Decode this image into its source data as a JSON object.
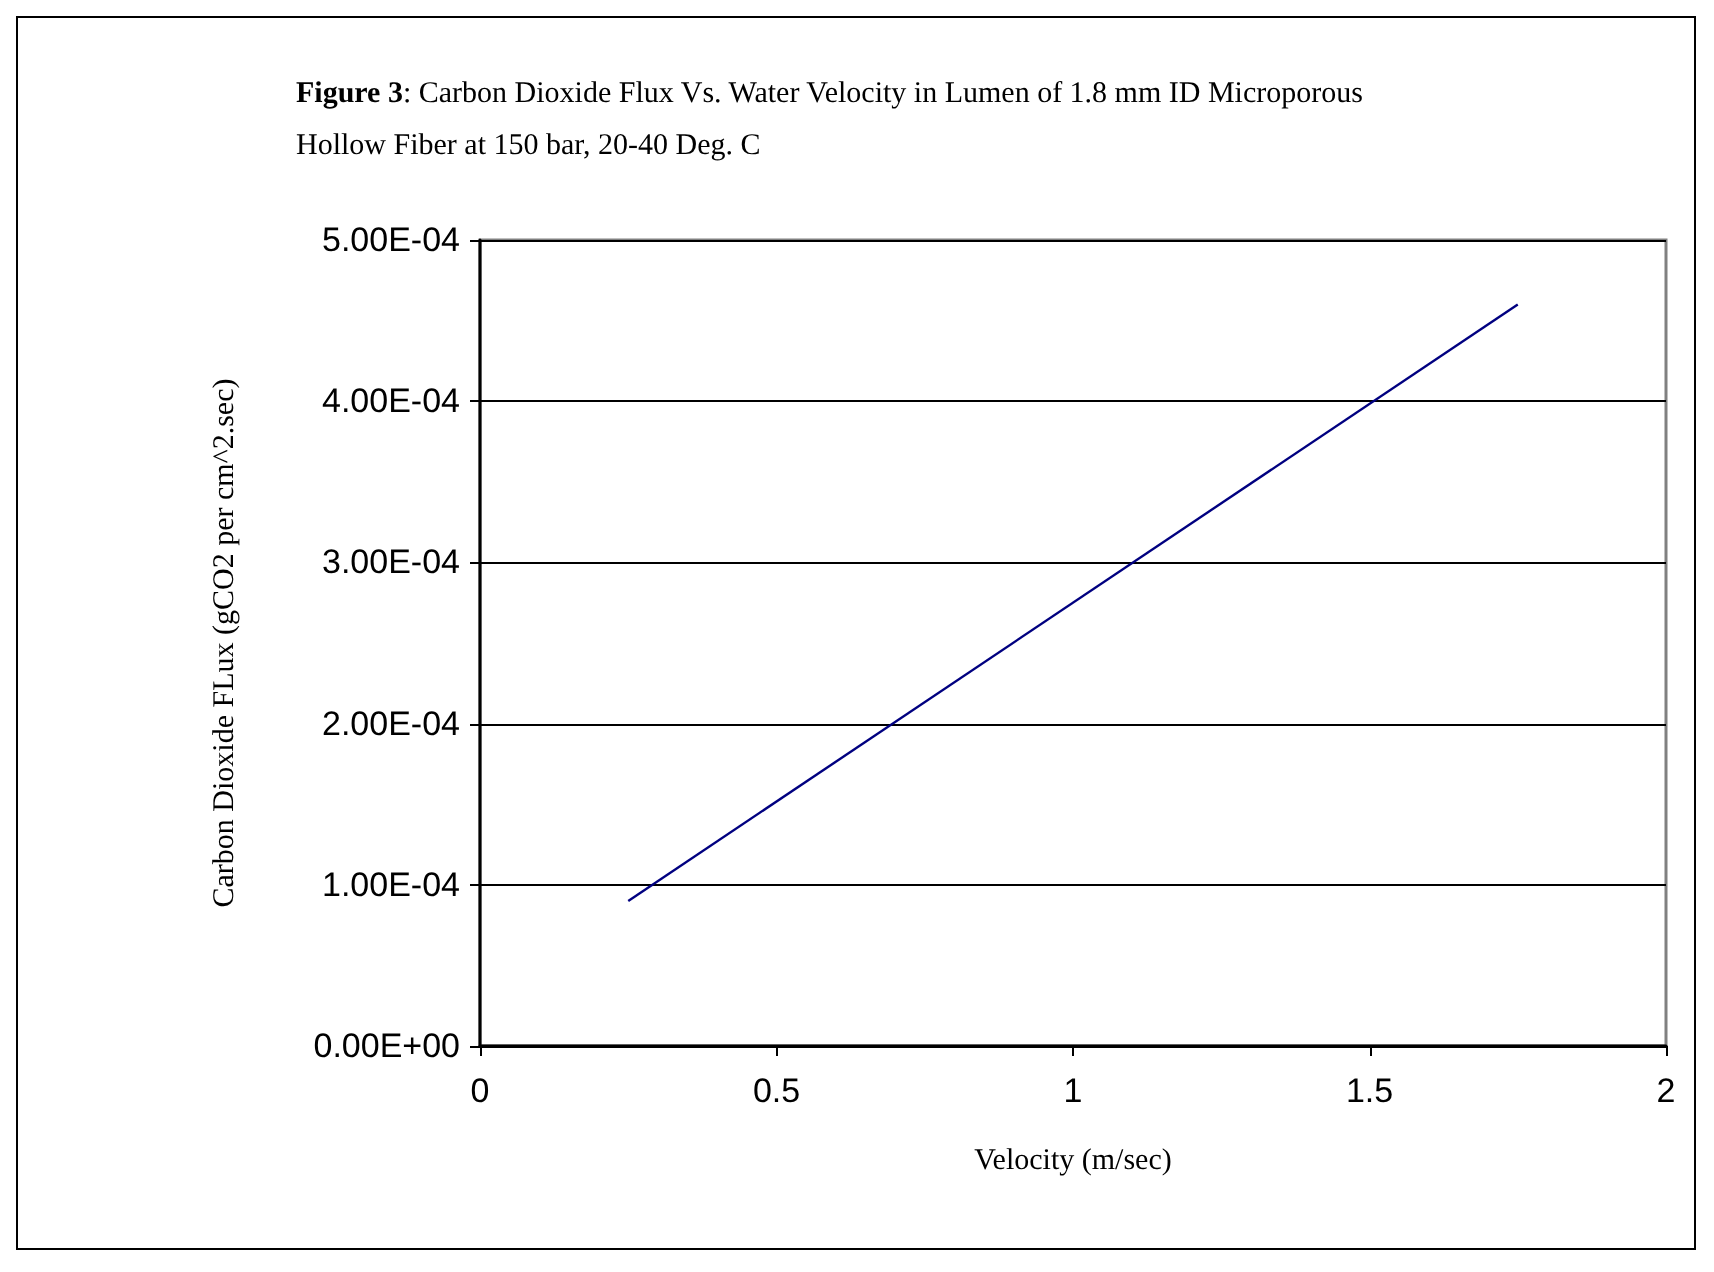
{
  "chart_data": {
    "type": "line",
    "title": "Figure 3: Carbon Dioxide Flux Vs. Water Velocity in Lumen of 1.8 mm ID Microporous Hollow Fiber at 150 bar, 20-40 Deg. C",
    "xlabel": "Velocity (m/sec)",
    "ylabel": "Carbon Dioxide FLux (gCO2 per cm^2.sec)",
    "x": [
      0.25,
      1.75
    ],
    "series": [
      {
        "color": "#000080",
        "values": [
          9e-05,
          0.00046
        ]
      }
    ],
    "xlim": [
      0,
      2
    ],
    "xticks": [
      0,
      0.5,
      1,
      1.5,
      2
    ],
    "ylim": [
      0,
      0.0005
    ],
    "yticks": [
      {
        "value": 0,
        "label": "0.00E+00"
      },
      {
        "value": 0.0001,
        "label": "1.00E-04"
      },
      {
        "value": 0.0002,
        "label": "2.00E-04"
      },
      {
        "value": 0.0003,
        "label": "3.00E-04"
      },
      {
        "value": 0.0004,
        "label": "4.00E-04"
      },
      {
        "value": 0.0005,
        "label": "5.00E-04"
      }
    ],
    "grid": "y",
    "marker": "none",
    "line_style": "solid"
  }
}
